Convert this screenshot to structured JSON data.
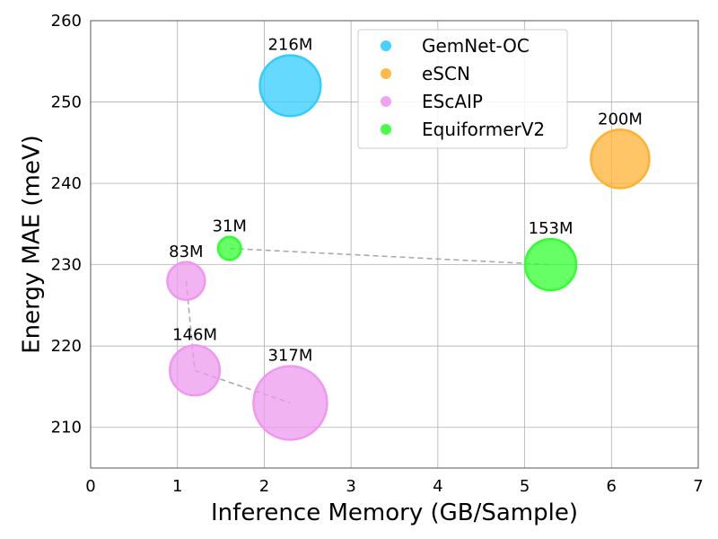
{
  "chart_data": {
    "type": "scatter",
    "title": "",
    "xlabel": "Inference Memory (GB/Sample)",
    "ylabel": "Energy MAE (meV)",
    "xlim": [
      0,
      7
    ],
    "ylim": [
      205,
      260
    ],
    "xticks": [
      0,
      1,
      2,
      3,
      4,
      5,
      6,
      7
    ],
    "yticks": [
      210,
      220,
      230,
      240,
      250,
      260
    ],
    "grid": true,
    "legend_position": "top-right",
    "series": [
      {
        "name": "GemNet-OC",
        "color": "#33ccff",
        "points": [
          {
            "x": 2.3,
            "y": 252,
            "params_m": 216,
            "label": "216M"
          }
        ]
      },
      {
        "name": "eSCN",
        "color": "#ffb233",
        "points": [
          {
            "x": 6.1,
            "y": 243,
            "params_m": 200,
            "label": "200M"
          }
        ]
      },
      {
        "name": "EScAIP",
        "color": "#ee99ee",
        "connect": true,
        "points": [
          {
            "x": 1.1,
            "y": 228,
            "params_m": 83,
            "label": "83M"
          },
          {
            "x": 1.2,
            "y": 217,
            "params_m": 146,
            "label": "146M"
          },
          {
            "x": 2.3,
            "y": 213,
            "params_m": 317,
            "label": "317M"
          }
        ]
      },
      {
        "name": "EquiformerV2",
        "color": "#33ff33",
        "connect": true,
        "points": [
          {
            "x": 1.6,
            "y": 232,
            "params_m": 31,
            "label": "31M"
          },
          {
            "x": 5.3,
            "y": 230,
            "params_m": 153,
            "label": "153M"
          }
        ]
      }
    ]
  }
}
